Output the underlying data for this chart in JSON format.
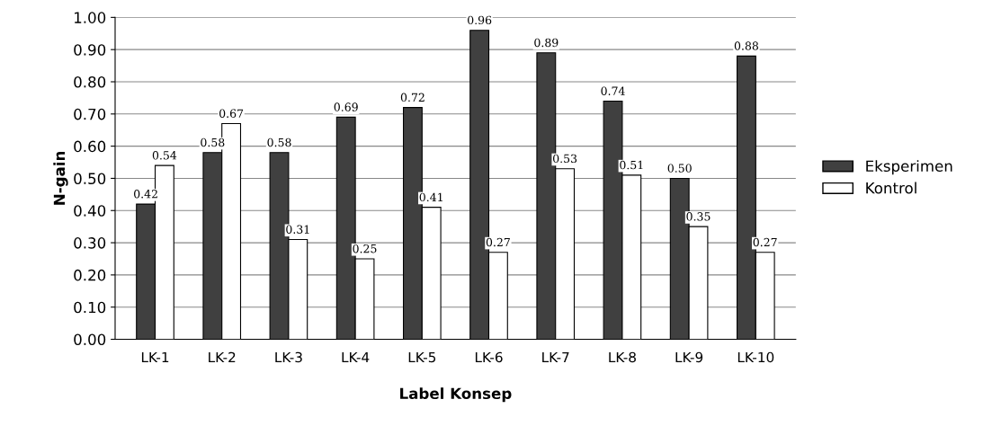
{
  "chart_data": {
    "type": "bar",
    "xlabel": "Label Konsep",
    "ylabel": "N-gain",
    "categories": [
      "LK-1",
      "LK-2",
      "LK-3",
      "LK-4",
      "LK-5",
      "LK-6",
      "LK-7",
      "LK-8",
      "LK-9",
      "LK-10"
    ],
    "series": [
      {
        "name": "Eksperimen",
        "color": "#404040",
        "values": [
          0.42,
          0.58,
          0.58,
          0.69,
          0.72,
          0.96,
          0.89,
          0.74,
          0.5,
          0.88
        ],
        "value_labels": [
          "0.42",
          "0.58",
          "0.58",
          "0.69",
          "0.72",
          "0.96",
          "0.89",
          "0.74",
          "0.50",
          "0.88"
        ]
      },
      {
        "name": "Kontrol",
        "color": "#ffffff",
        "values": [
          0.54,
          0.67,
          0.31,
          0.25,
          0.41,
          0.27,
          0.53,
          0.51,
          0.35,
          0.27
        ],
        "value_labels": [
          "0.54",
          "0.67",
          "0.31",
          "0.25",
          "0.41",
          "0.27",
          "0.53",
          "0.51",
          "0.35",
          "0.27"
        ]
      }
    ],
    "ylim": [
      0,
      1.0
    ],
    "yticks": [
      {
        "value": 0,
        "label": "0.00"
      },
      {
        "value": 0.1,
        "label": "0.10"
      },
      {
        "value": 0.2,
        "label": "0.20"
      },
      {
        "value": 0.3,
        "label": "0.30"
      },
      {
        "value": 0.4,
        "label": "0.40"
      },
      {
        "value": 0.5,
        "label": "0.50"
      },
      {
        "value": 0.6,
        "label": "0.60"
      },
      {
        "value": 0.7,
        "label": "0.70"
      },
      {
        "value": 0.8,
        "label": "0.80"
      },
      {
        "value": 0.9,
        "label": "0.90"
      },
      {
        "value": 1.0,
        "label": "1.00"
      }
    ],
    "grid": "y",
    "legend": "right"
  }
}
